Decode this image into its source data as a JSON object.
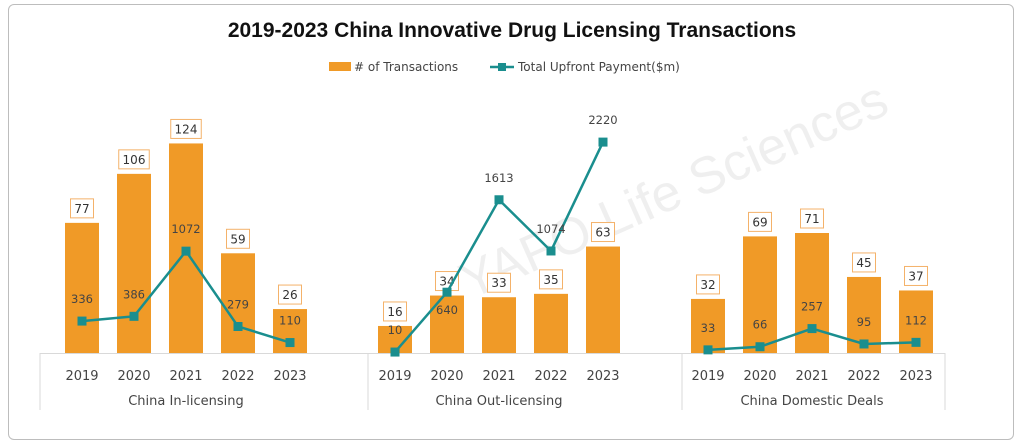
{
  "chart_data": {
    "type": "bar",
    "title": "2019-2023 China Innovative Drug Licensing Transactions",
    "watermark": "YAFO Life Sciences",
    "legend": {
      "placement": "top",
      "entries": [
        "# of Transactions",
        "Total Upfront Payment($m)"
      ]
    },
    "colors": {
      "bars": "#F09A27",
      "line": "#1A8E8E"
    },
    "categories": [
      "2019",
      "2020",
      "2021",
      "2022",
      "2023"
    ],
    "groups": [
      {
        "name": "China In-licensing",
        "transactions": [
          77,
          106,
          124,
          59,
          26
        ],
        "upfront": [
          336,
          386,
          1072,
          279,
          110
        ]
      },
      {
        "name": "China Out-licensing",
        "transactions": [
          16,
          34,
          33,
          35,
          63
        ],
        "upfront": [
          10,
          640,
          1613,
          1074,
          2220
        ]
      },
      {
        "name": "China Domestic Deals",
        "transactions": [
          32,
          69,
          71,
          45,
          37
        ],
        "upfront": [
          33,
          66,
          257,
          95,
          112
        ]
      }
    ],
    "series": [
      {
        "name": "# of Transactions",
        "type": "bar",
        "axis": "primary"
      },
      {
        "name": "Total Upfront Payment($m)",
        "type": "line",
        "axis": "secondary"
      }
    ],
    "grid": false
  }
}
